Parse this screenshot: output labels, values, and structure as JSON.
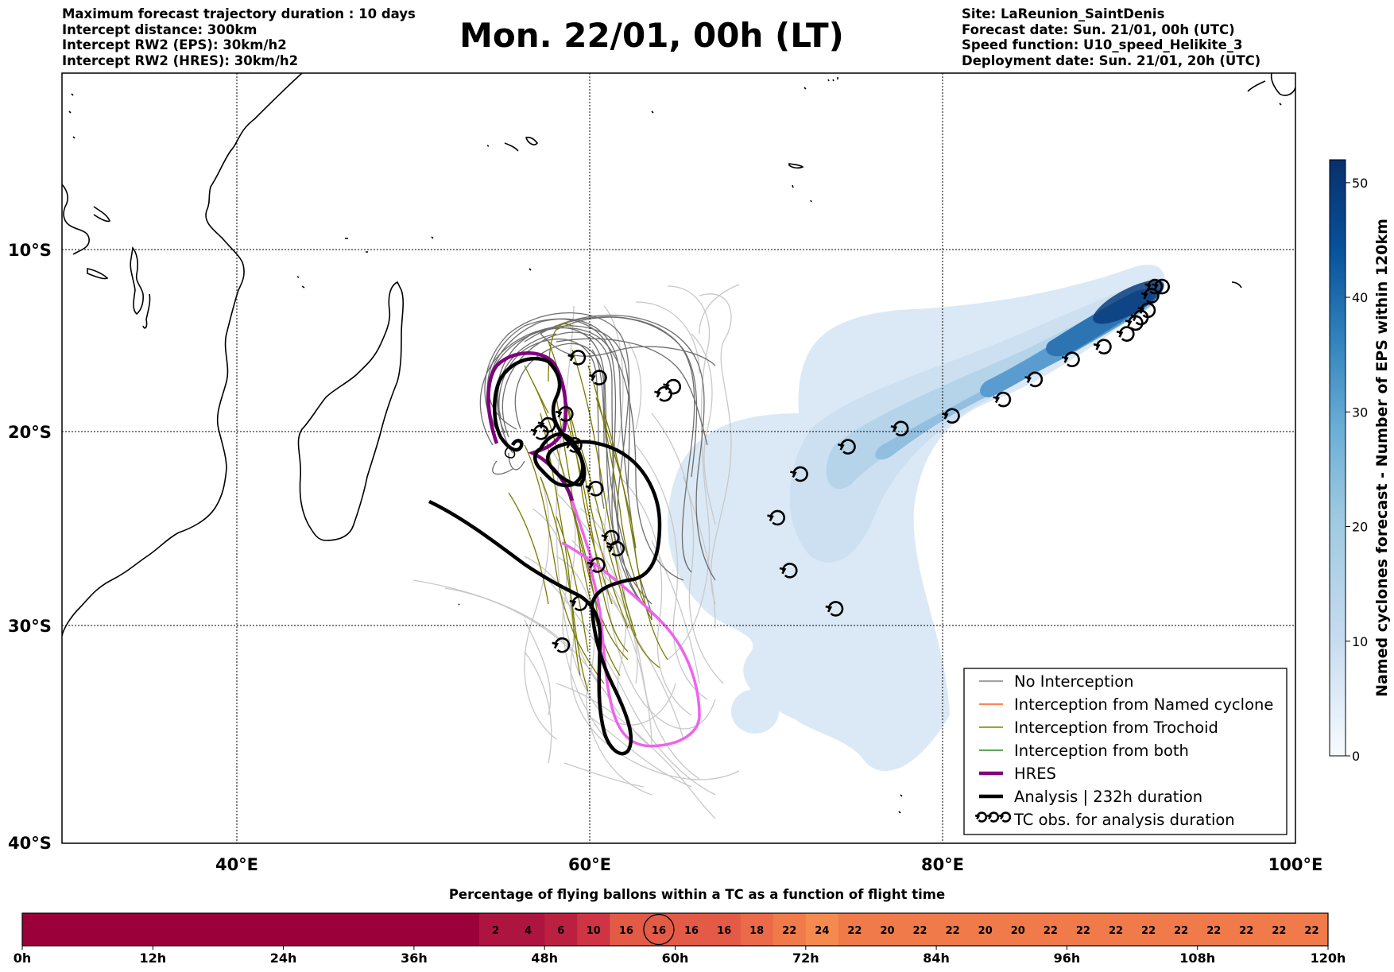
{
  "header_left": [
    "Maximum forecast trajectory duration : 10 days",
    "Intercept distance: 300km",
    "Intercept RW2 (EPS):  30km/h2",
    "Intercept RW2 (HRES): 30km/h2"
  ],
  "title": "Mon. 22/01, 00h (LT)",
  "header_right": [
    "Site: LaReunion_SaintDenis",
    "Forecast date: Sun. 21/01, 00h (UTC)",
    "Speed function: U10_speed_Helikite_3",
    "Deployment date: Sun. 21/01, 20h (UTC)"
  ],
  "map": {
    "lat_ticks": [
      {
        "label": "10°S",
        "lat": -10
      },
      {
        "label": "20°S",
        "lat": -20
      },
      {
        "label": "30°S",
        "lat": -30
      },
      {
        "label": "40°S",
        "lat": -40
      }
    ],
    "lon_ticks": [
      {
        "label": "40°E",
        "lon": 40
      },
      {
        "label": "60°E",
        "lon": 60
      },
      {
        "label": "80°E",
        "lon": 80
      },
      {
        "label": "100°E",
        "lon": 100
      }
    ]
  },
  "legend": [
    {
      "label": "No Interception",
      "color": "#808080",
      "style": "thin"
    },
    {
      "label": "Interception from Named cyclone",
      "color": "#ff5a1e",
      "style": "thin"
    },
    {
      "label": "Interception from Trochoid",
      "color": "#808000",
      "style": "thin"
    },
    {
      "label": "Interception from both",
      "color": "#228b22",
      "style": "thin"
    },
    {
      "label": "HRES",
      "color": "#800080",
      "style": "thick"
    },
    {
      "label": "Analysis | 232h duration",
      "color": "#000000",
      "style": "thick"
    },
    {
      "label": "TC obs. for analysis duration",
      "color": "#000000",
      "style": "symbol"
    }
  ],
  "colorbar": {
    "label": "Named cyclones forecast - Number of EPS within 120km",
    "ticks": [
      "0",
      "10",
      "20",
      "30",
      "40",
      "50"
    ],
    "min": 0,
    "max": 52,
    "colors": [
      "#f7fbff",
      "#08306b"
    ]
  },
  "timeline": {
    "title": "Percentage of flying ballons within a TC as a function of flight time",
    "cell_values": [
      "",
      "",
      "",
      "",
      "",
      "",
      "",
      "",
      "",
      "",
      "",
      "",
      "",
      "",
      "2",
      "4",
      "6",
      "10",
      "16",
      "16",
      "16",
      "16",
      "18",
      "22",
      "24",
      "22",
      "20",
      "22",
      "22",
      "20",
      "20",
      "22",
      "22",
      "22",
      "22",
      "22",
      "22",
      "22",
      "22",
      "22"
    ],
    "highlight_index": 19,
    "tick_labels": [
      "0h",
      "12h",
      "24h",
      "36h",
      "48h",
      "60h",
      "72h",
      "84h",
      "96h",
      "108h",
      "120h"
    ]
  },
  "tc_obs": [
    [
      92.7,
      -12.3
    ],
    [
      92.3,
      -12.3
    ],
    [
      92.1,
      -12.8
    ],
    [
      91.9,
      -13.6
    ],
    [
      91.5,
      -14.0
    ],
    [
      91.2,
      -14.3
    ],
    [
      90.7,
      -14.9
    ],
    [
      89.4,
      -15.6
    ],
    [
      87.6,
      -16.3
    ],
    [
      85.5,
      -17.4
    ],
    [
      83.7,
      -18.5
    ],
    [
      80.8,
      -19.4
    ],
    [
      77.9,
      -20.1
    ],
    [
      74.9,
      -21.1
    ],
    [
      72.2,
      -22.6
    ],
    [
      70.9,
      -25.0
    ],
    [
      71.6,
      -27.9
    ],
    [
      74.2,
      -30.0
    ],
    [
      64.5,
      -18.2
    ],
    [
      65.0,
      -17.8
    ],
    [
      60.8,
      -17.3
    ],
    [
      59.6,
      -16.2
    ],
    [
      58.9,
      -19.3
    ],
    [
      57.9,
      -19.9
    ],
    [
      57.5,
      -20.3
    ],
    [
      59.4,
      -21.0
    ],
    [
      60.6,
      -23.4
    ],
    [
      61.5,
      -26.1
    ],
    [
      61.8,
      -26.7
    ],
    [
      60.7,
      -27.6
    ],
    [
      59.7,
      -29.7
    ],
    [
      58.7,
      -32.0
    ]
  ]
}
